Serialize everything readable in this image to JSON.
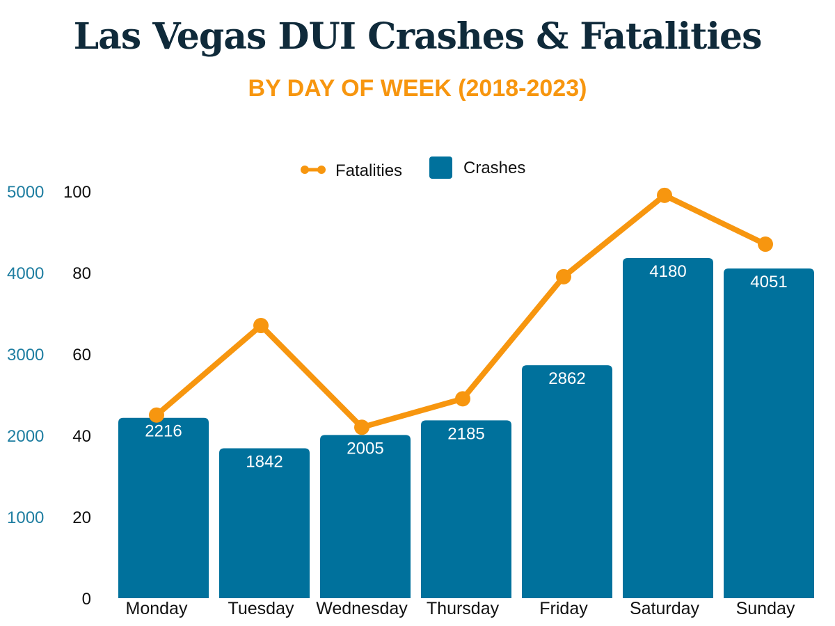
{
  "title": "Las Vegas DUI Crashes & Fatalities",
  "subtitle": "BY DAY OF WEEK (2018-2023)",
  "chart_data": {
    "type": "bar",
    "categories": [
      "Monday",
      "Tuesday",
      "Wednesday",
      "Thursday",
      "Friday",
      "Saturday",
      "Sunday"
    ],
    "series": [
      {
        "name": "Crashes",
        "kind": "bar",
        "axis": "left-outer",
        "color": "#00719c",
        "values": [
          2216,
          1842,
          2005,
          2185,
          2862,
          4180,
          4051
        ],
        "labels": [
          "2216",
          "1842",
          "2005",
          "2185",
          "2862",
          "4180",
          "4051"
        ]
      },
      {
        "name": "Fatalities",
        "kind": "line",
        "axis": "left-inner",
        "color": "#f7960f",
        "values": [
          45,
          67,
          42,
          49,
          79,
          99,
          87
        ]
      }
    ],
    "crashes_axis": {
      "ylim": [
        0,
        5000
      ],
      "ticks": [
        "1000",
        "2000",
        "3000",
        "4000",
        "5000"
      ],
      "color": "#1f7ea1"
    },
    "fatalities_axis": {
      "ylim": [
        0,
        100
      ],
      "ticks": [
        "0",
        "20",
        "40",
        "60",
        "80",
        "100"
      ],
      "color": "#111111"
    },
    "legend": {
      "placement": "top-center",
      "items": [
        "Fatalities",
        "Crashes"
      ]
    },
    "grid": false
  }
}
